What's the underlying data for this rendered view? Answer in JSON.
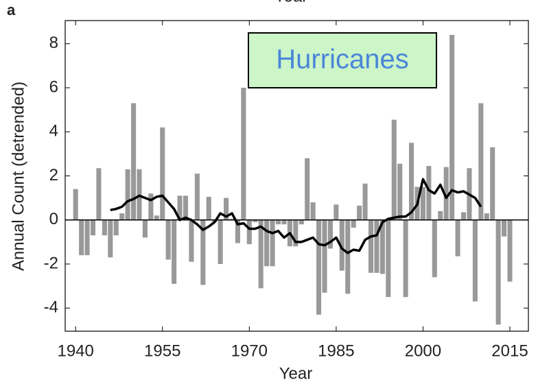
{
  "chart_data": {
    "type": "bar",
    "panel_label": "a",
    "top_label": "Year",
    "xlabel": "Year",
    "ylabel": "Annual Count (detrended)",
    "annotation": "Hurricanes",
    "annotation_color": "#4a86d8",
    "annotation_background": "#ccf5c8",
    "xlim": [
      1938.2,
      2018.2
    ],
    "ylim": [
      -5.05,
      9.05
    ],
    "xticks": [
      1940,
      1955,
      1970,
      1985,
      2000,
      2015
    ],
    "yticks": [
      -4,
      -2,
      0,
      2,
      4,
      6,
      8
    ],
    "bars": {
      "color": "#999999",
      "x": [
        1940,
        1941,
        1942,
        1943,
        1944,
        1945,
        1946,
        1947,
        1948,
        1949,
        1950,
        1951,
        1952,
        1953,
        1954,
        1955,
        1956,
        1957,
        1958,
        1959,
        1960,
        1961,
        1962,
        1963,
        1964,
        1965,
        1966,
        1967,
        1968,
        1969,
        1970,
        1971,
        1972,
        1973,
        1974,
        1975,
        1976,
        1977,
        1978,
        1979,
        1980,
        1981,
        1982,
        1983,
        1984,
        1985,
        1986,
        1987,
        1988,
        1989,
        1990,
        1991,
        1992,
        1993,
        1994,
        1995,
        1996,
        1997,
        1998,
        1999,
        2000,
        2001,
        2002,
        2003,
        2004,
        2005,
        2006,
        2007,
        2008,
        2009,
        2010,
        2011,
        2012,
        2013,
        2014,
        2015
      ],
      "values": [
        1.4,
        -1.6,
        -1.6,
        -0.7,
        2.35,
        -0.7,
        -1.7,
        -0.7,
        0.3,
        2.3,
        5.3,
        2.3,
        -0.8,
        1.2,
        0.2,
        4.2,
        -1.8,
        -2.9,
        1.1,
        1.1,
        -1.9,
        2.1,
        -2.95,
        1.05,
        -0.1,
        -2.0,
        1.0,
        0.05,
        -1.05,
        6.0,
        -1.1,
        -0.1,
        -3.1,
        -2.1,
        -2.1,
        -0.2,
        -0.2,
        -1.2,
        -1.2,
        -0.2,
        2.8,
        0.8,
        -4.3,
        -3.3,
        -1.3,
        0.7,
        -2.3,
        -3.35,
        -0.35,
        0.65,
        1.65,
        -2.4,
        -2.4,
        -2.45,
        -3.5,
        4.55,
        2.55,
        -3.5,
        3.5,
        1.5,
        1.5,
        2.45,
        -2.6,
        0.4,
        2.4,
        8.4,
        -1.65,
        0.35,
        2.35,
        -3.7,
        5.3,
        0.3,
        3.3,
        -4.75,
        -0.75,
        -2.8
      ]
    },
    "line": {
      "color": "#000000",
      "x": [
        1946,
        1947,
        1948,
        1949,
        1950,
        1951,
        1952,
        1953,
        1954,
        1955,
        1956,
        1957,
        1958,
        1959,
        1960,
        1961,
        1962,
        1963,
        1964,
        1965,
        1966,
        1967,
        1968,
        1969,
        1970,
        1971,
        1972,
        1973,
        1974,
        1975,
        1976,
        1977,
        1978,
        1979,
        1980,
        1981,
        1982,
        1983,
        1984,
        1985,
        1986,
        1987,
        1988,
        1989,
        1990,
        1991,
        1992,
        1993,
        1994,
        1995,
        1996,
        1997,
        1998,
        1999,
        2000,
        2001,
        2002,
        2003,
        2004,
        2005,
        2006,
        2007,
        2008,
        2009,
        2010
      ],
      "values": [
        0.45,
        0.5,
        0.6,
        0.85,
        0.95,
        1.1,
        1.0,
        0.9,
        1.05,
        1.1,
        0.8,
        0.5,
        0.0,
        0.1,
        0.0,
        -0.2,
        -0.45,
        -0.3,
        -0.1,
        0.3,
        0.15,
        0.3,
        -0.2,
        -0.15,
        -0.4,
        -0.4,
        -0.3,
        -0.5,
        -0.6,
        -0.5,
        -0.8,
        -0.6,
        -1.0,
        -1.0,
        -0.9,
        -0.8,
        -1.1,
        -1.15,
        -1.0,
        -0.8,
        -1.3,
        -1.5,
        -1.35,
        -1.4,
        -0.9,
        -0.75,
        -0.7,
        -0.1,
        0.05,
        0.1,
        0.15,
        0.15,
        0.35,
        0.7,
        1.85,
        1.35,
        1.2,
        1.6,
        1.0,
        1.35,
        1.25,
        1.3,
        1.15,
        1.0,
        0.6
      ]
    }
  }
}
